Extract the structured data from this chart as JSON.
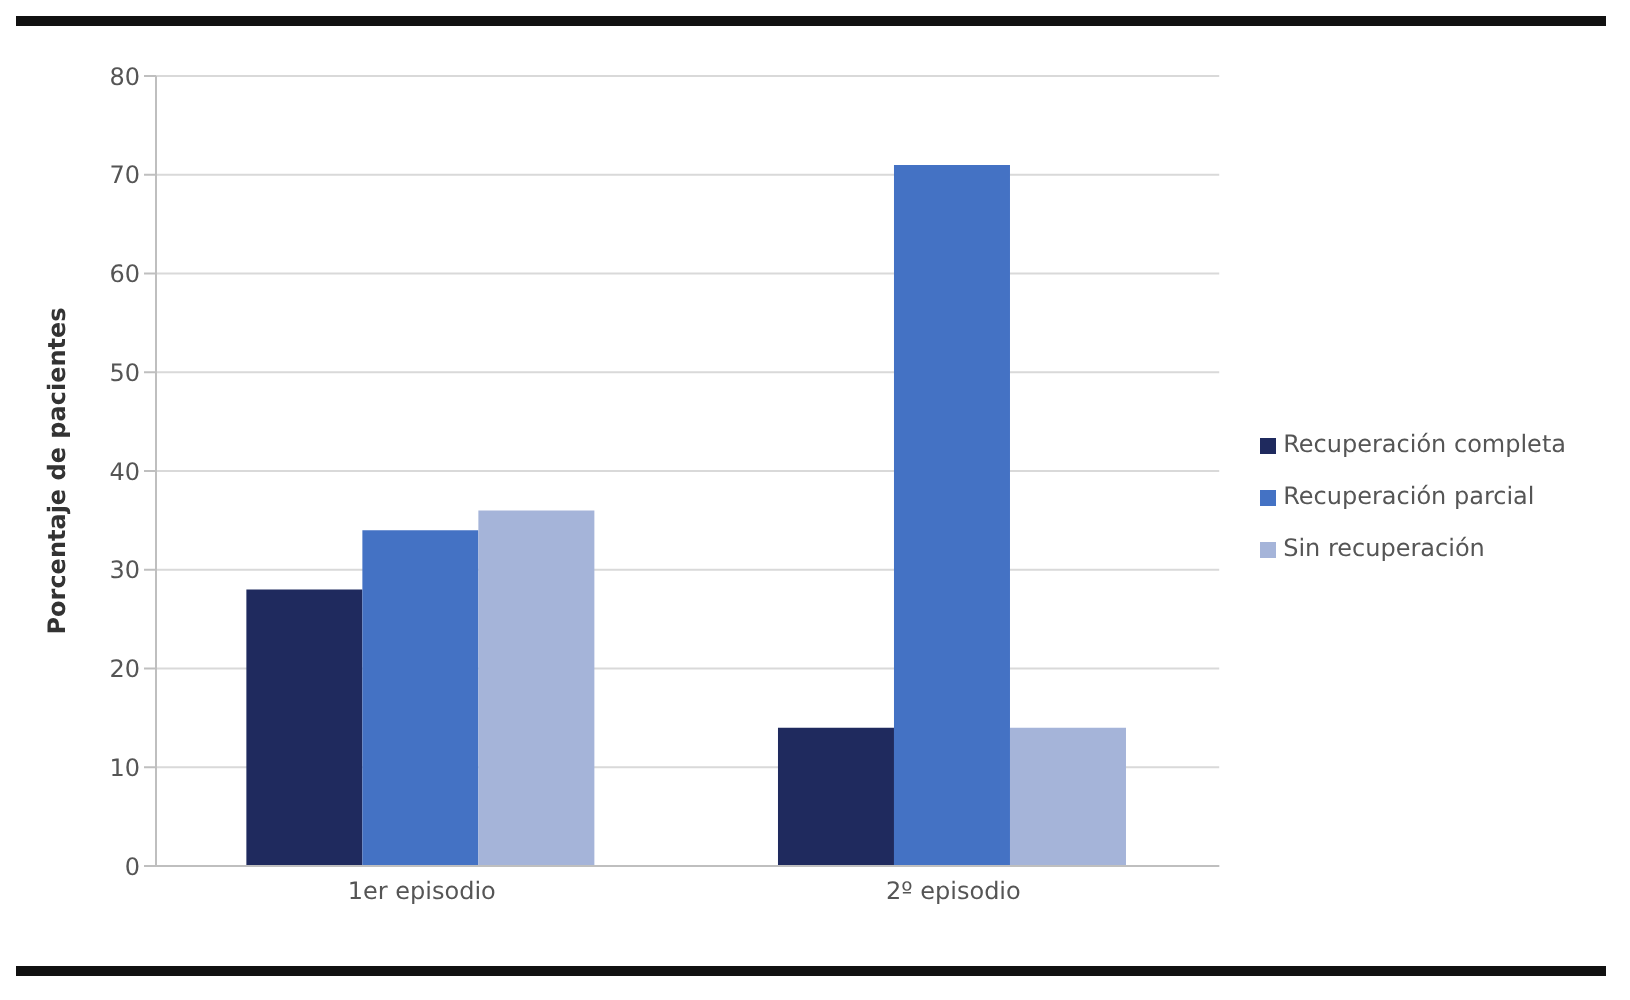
{
  "chart_data": {
    "type": "bar",
    "ylabel": "Porcentaje de pacientes",
    "categories": [
      "1er episodio",
      "2º episodio"
    ],
    "series": [
      {
        "name": "Recuperación completa",
        "color": "#1f2a5e",
        "values": [
          28,
          14
        ]
      },
      {
        "name": "Recuperación parcial",
        "color": "#4472c4",
        "values": [
          34,
          71
        ]
      },
      {
        "name": "Sin recuperación",
        "color": "#a5b4d9",
        "values": [
          36,
          14
        ]
      }
    ],
    "ylim": [
      0,
      80
    ],
    "yticks": [
      0,
      10,
      20,
      30,
      40,
      50,
      60,
      70,
      80
    ],
    "grid": "y",
    "legend": "right"
  }
}
